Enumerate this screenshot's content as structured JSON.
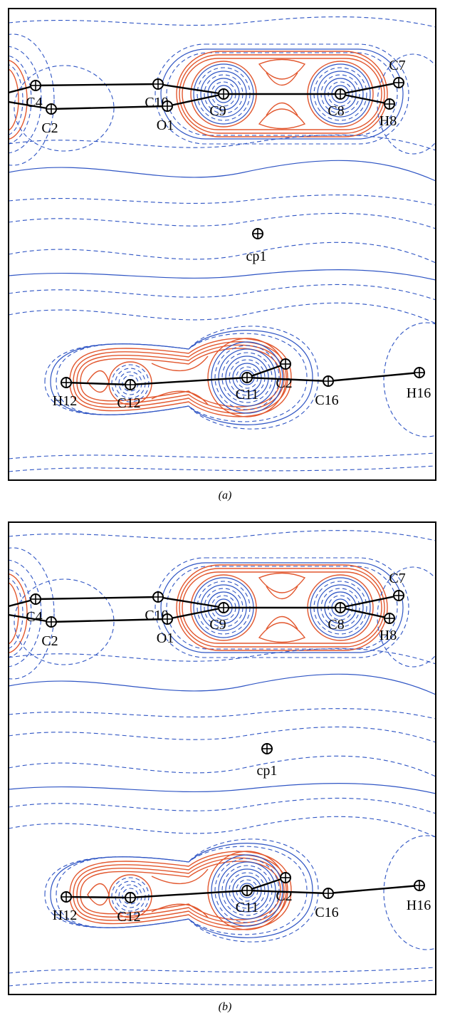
{
  "panels": [
    {
      "caption": "(a)",
      "atoms": [
        {
          "label": "C4"
        },
        {
          "label": "C2"
        },
        {
          "label": "C10"
        },
        {
          "label": "O1"
        },
        {
          "label": "C9"
        },
        {
          "label": "C8"
        },
        {
          "label": "C7"
        },
        {
          "label": "H8"
        },
        {
          "label": "cp1"
        },
        {
          "label": "H12"
        },
        {
          "label": "C12"
        },
        {
          "label": "C11"
        },
        {
          "label": "C2"
        },
        {
          "label": "C16"
        },
        {
          "label": "H16"
        }
      ]
    },
    {
      "caption": "(b)",
      "atoms": [
        {
          "label": "C4"
        },
        {
          "label": "C2"
        },
        {
          "label": "C10"
        },
        {
          "label": "O1"
        },
        {
          "label": "C9"
        },
        {
          "label": "C8"
        },
        {
          "label": "C7"
        },
        {
          "label": "H8"
        },
        {
          "label": "cp1"
        },
        {
          "label": "H12"
        },
        {
          "label": "C12"
        },
        {
          "label": "C11"
        },
        {
          "label": "C2"
        },
        {
          "label": "C16"
        },
        {
          "label": "H16"
        }
      ]
    }
  ],
  "colors": {
    "positive": "#e2572e",
    "negative": "#2f55c4",
    "bond": "#000000"
  }
}
